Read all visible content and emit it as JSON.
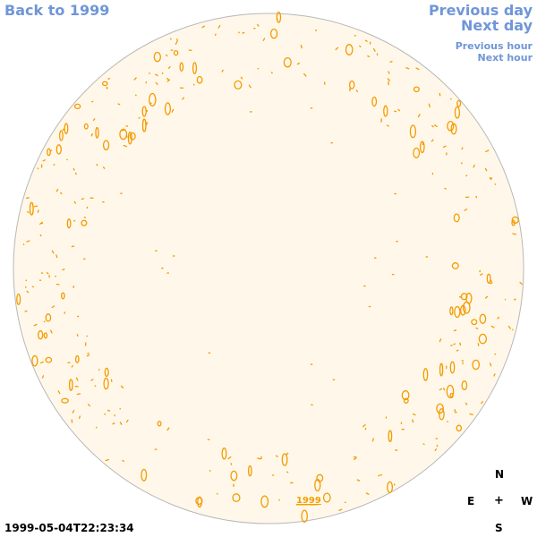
{
  "nav": {
    "back_label": "Back to 1999",
    "prev_day_label": "Previous day",
    "next_day_label": "Next day",
    "prev_hour_label": "Previous hour",
    "next_hour_label": "Next hour"
  },
  "disk": {
    "year_label": "1999",
    "fill_color": "#fff8ea",
    "edge_color": "#b8b8b8",
    "feature_color": "#f59a00"
  },
  "timestamp": "1999-05-04T22:23:34",
  "compass": {
    "n": "N",
    "e": "E",
    "center": "+",
    "w": "W",
    "s": "S"
  },
  "colors": {
    "link": "#6f96d8",
    "text": "#000000"
  }
}
